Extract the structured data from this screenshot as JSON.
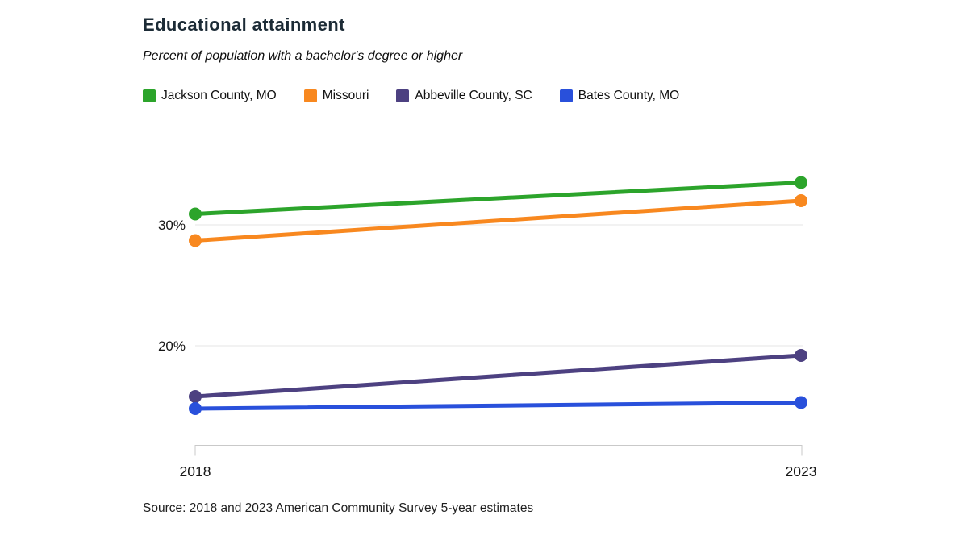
{
  "title": "Educational attainment",
  "subtitle": "Percent of population with a bachelor's degree or higher",
  "source": "Source: 2018 and 2023 American Community Survey 5-year estimates",
  "chart_data": {
    "type": "line",
    "x": [
      "2018",
      "2023"
    ],
    "series": [
      {
        "name": "Jackson County, MO",
        "color": "#2ca42b",
        "values": [
          30.9,
          33.5
        ]
      },
      {
        "name": "Missouri",
        "color": "#f8881f",
        "values": [
          28.7,
          32.0
        ]
      },
      {
        "name": "Abbeville County, SC",
        "color": "#4d4181",
        "values": [
          15.8,
          19.2
        ]
      },
      {
        "name": "Bates County, MO",
        "color": "#2950db",
        "values": [
          14.8,
          15.3
        ]
      }
    ],
    "xlabel": "",
    "ylabel": "",
    "yticks": [
      {
        "value": 30,
        "label": "30%"
      },
      {
        "value": 20,
        "label": "20%"
      }
    ],
    "ylim": [
      11.7,
      36.0
    ],
    "grid": "horizontal",
    "legend_position": "top",
    "colors": {
      "gridline": "#e4e4e4",
      "axis": "#c9c9c9",
      "tick_text": "#161616",
      "title_text": "#1c2b36"
    }
  }
}
